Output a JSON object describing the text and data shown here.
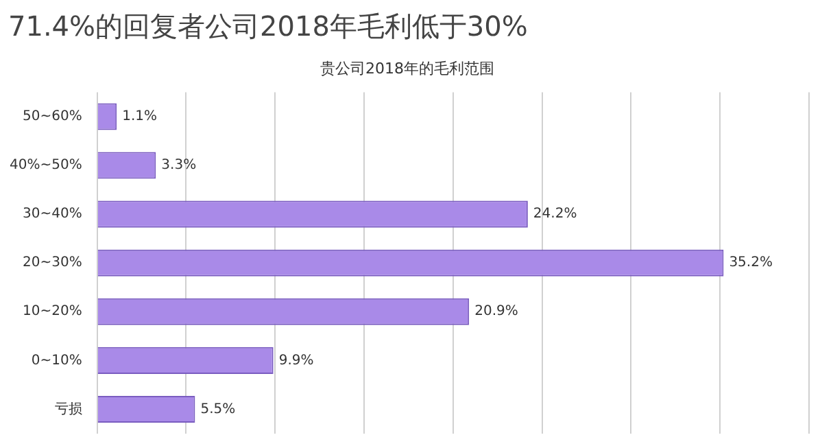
{
  "chart_data": {
    "type": "bar",
    "orientation": "horizontal",
    "title": "71.4%的回复者公司2018年毛利低于30%",
    "subtitle": "贵公司2018年的毛利范围",
    "categories": [
      "50~60%",
      "40%~50%",
      "30~40%",
      "20~30%",
      "10~20%",
      "0~10%",
      "亏损"
    ],
    "values": [
      1.1,
      3.3,
      24.2,
      35.2,
      20.9,
      9.9,
      5.5
    ],
    "value_labels": [
      "1.1%",
      "3.3%",
      "24.2%",
      "35.2%",
      "20.9%",
      "9.9%",
      "5.5%"
    ],
    "color": "#a98ae8",
    "xlim": [
      0,
      40
    ],
    "xticks": [
      {
        "value": 0,
        "label": null
      },
      {
        "value": 5,
        "label": null
      },
      {
        "value": 10,
        "label": null
      },
      {
        "value": 15,
        "label": null
      },
      {
        "value": 20,
        "label": null
      },
      {
        "value": 25,
        "label": null
      },
      {
        "value": 30,
        "label": null
      },
      {
        "value": 35,
        "label": null
      },
      {
        "value": 40,
        "label": null
      }
    ],
    "tick_labels": "y",
    "grid": "x",
    "legend": false
  }
}
